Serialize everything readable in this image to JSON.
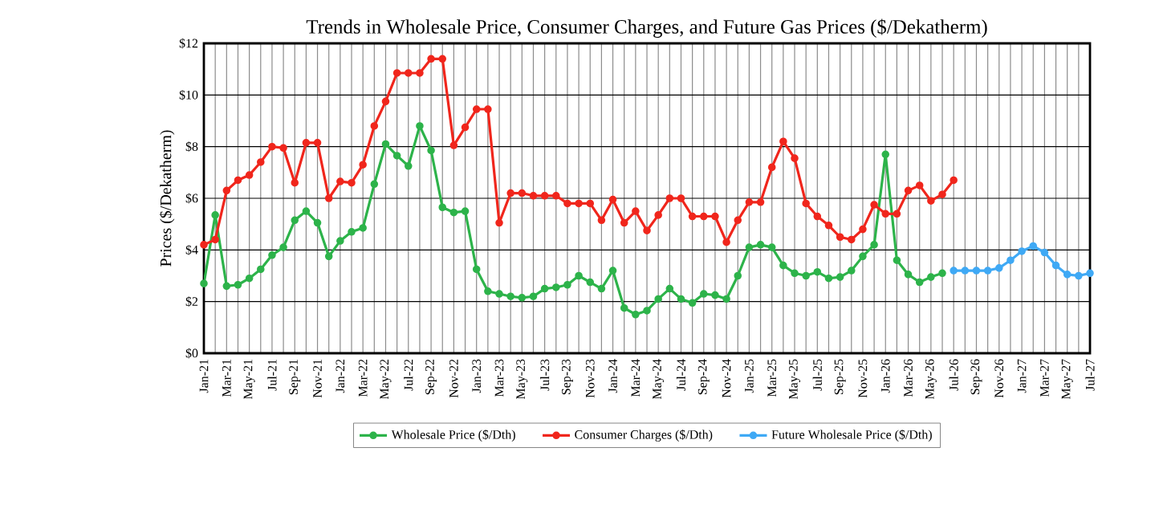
{
  "chart_data": {
    "type": "line",
    "title": "Trends in Wholesale Price, Consumer Charges, and Future Gas Prices ($/Dekatherm)",
    "ylabel": "Prices ($/Dekatherm)",
    "categories": [
      "Jan-21",
      null,
      "Mar-21",
      null,
      "May-21",
      null,
      "Jul-21",
      null,
      "Sep-21",
      null,
      "Nov-21",
      null,
      "Jan-22",
      null,
      "Mar-22",
      null,
      "May-22",
      null,
      "Jul-22",
      null,
      "Sep-22",
      null,
      "Nov-22",
      null,
      "Jan-23",
      null,
      "Mar-23",
      null,
      "May-23",
      null,
      "Jul-23",
      null,
      "Sep-23",
      null,
      "Nov-23",
      null,
      "Jan-24",
      null,
      "Mar-24",
      null,
      "May-24",
      null,
      "Jul-24",
      null,
      "Sep-24",
      null,
      "Nov-24",
      null,
      "Jan-25",
      null,
      "Mar-25",
      null,
      "May-25",
      null,
      "Jul-25",
      null,
      "Sep-25",
      null,
      "Nov-25",
      null,
      "Jan-26",
      null,
      "Mar-26",
      null,
      "May-26",
      null,
      "Jul-26",
      null,
      "Sep-26",
      null,
      "Nov-26",
      null,
      "Jan-27",
      null,
      "Mar-27",
      null,
      "May-27",
      null,
      "Jul-27"
    ],
    "series": [
      {
        "name": "Wholesale Price ($/Dth)",
        "color": "#2db34a",
        "values": [
          2.7,
          5.35,
          2.6,
          2.65,
          2.9,
          3.25,
          3.8,
          4.1,
          5.15,
          5.5,
          5.05,
          3.75,
          4.35,
          4.7,
          4.85,
          6.55,
          8.1,
          7.65,
          7.25,
          8.8,
          7.85,
          5.65,
          5.45,
          5.5,
          3.25,
          2.4,
          2.3,
          2.2,
          2.15,
          2.2,
          2.5,
          2.55,
          2.65,
          3.0,
          2.75,
          2.5,
          3.2,
          1.75,
          1.5,
          1.65,
          2.1,
          2.5,
          2.1,
          1.95,
          2.3,
          2.25,
          2.1,
          3.0,
          4.1,
          4.2,
          4.1,
          3.4,
          3.1,
          3.0,
          3.15,
          2.9,
          2.95,
          3.2,
          3.75,
          4.2,
          7.7,
          3.6,
          3.05,
          2.75,
          2.95,
          3.1,
          null,
          null,
          null,
          null,
          null,
          null,
          null,
          null,
          null,
          null,
          null,
          null,
          null
        ]
      },
      {
        "name": "Consumer Charges ($/Dth)",
        "color": "#f0261c",
        "values": [
          4.2,
          4.4,
          6.3,
          6.7,
          6.9,
          7.4,
          8.0,
          7.95,
          6.6,
          8.15,
          8.15,
          6.0,
          6.65,
          6.6,
          7.3,
          8.8,
          9.75,
          10.85,
          10.85,
          10.85,
          11.4,
          11.4,
          8.05,
          8.75,
          9.45,
          9.45,
          5.05,
          6.2,
          6.2,
          6.1,
          6.1,
          6.1,
          5.8,
          5.8,
          5.8,
          5.15,
          5.95,
          5.05,
          5.5,
          4.75,
          5.35,
          6.0,
          6.0,
          5.3,
          5.3,
          5.3,
          4.3,
          5.15,
          5.85,
          5.85,
          7.2,
          8.2,
          7.55,
          5.8,
          5.3,
          4.95,
          4.5,
          4.4,
          4.8,
          5.75,
          5.4,
          5.4,
          6.3,
          6.5,
          5.9,
          6.15,
          6.7,
          null,
          null,
          null,
          null,
          null,
          null,
          null,
          null,
          null,
          null,
          null,
          null
        ]
      },
      {
        "name": "Future Wholesale Price ($/Dth)",
        "color": "#3fa9f5",
        "values": [
          null,
          null,
          null,
          null,
          null,
          null,
          null,
          null,
          null,
          null,
          null,
          null,
          null,
          null,
          null,
          null,
          null,
          null,
          null,
          null,
          null,
          null,
          null,
          null,
          null,
          null,
          null,
          null,
          null,
          null,
          null,
          null,
          null,
          null,
          null,
          null,
          null,
          null,
          null,
          null,
          null,
          null,
          null,
          null,
          null,
          null,
          null,
          null,
          null,
          null,
          null,
          null,
          null,
          null,
          null,
          null,
          null,
          null,
          null,
          null,
          null,
          null,
          null,
          null,
          null,
          null,
          3.2,
          3.2,
          3.2,
          3.2,
          3.3,
          3.6,
          3.95,
          4.15,
          3.9,
          3.4,
          3.05,
          3.0,
          3.1
        ]
      }
    ],
    "ylim": [
      0,
      12
    ],
    "yticks": [
      {
        "value": 0,
        "label": "$0"
      },
      {
        "value": 2,
        "label": "$2"
      },
      {
        "value": 4,
        "label": "$4"
      },
      {
        "value": 6,
        "label": "$6"
      },
      {
        "value": 8,
        "label": "$8"
      },
      {
        "value": 10,
        "label": "$10"
      },
      {
        "value": 12,
        "label": "$12"
      }
    ],
    "grid": true,
    "legend": "bottom",
    "marker": "circle",
    "line_style": "solid"
  }
}
